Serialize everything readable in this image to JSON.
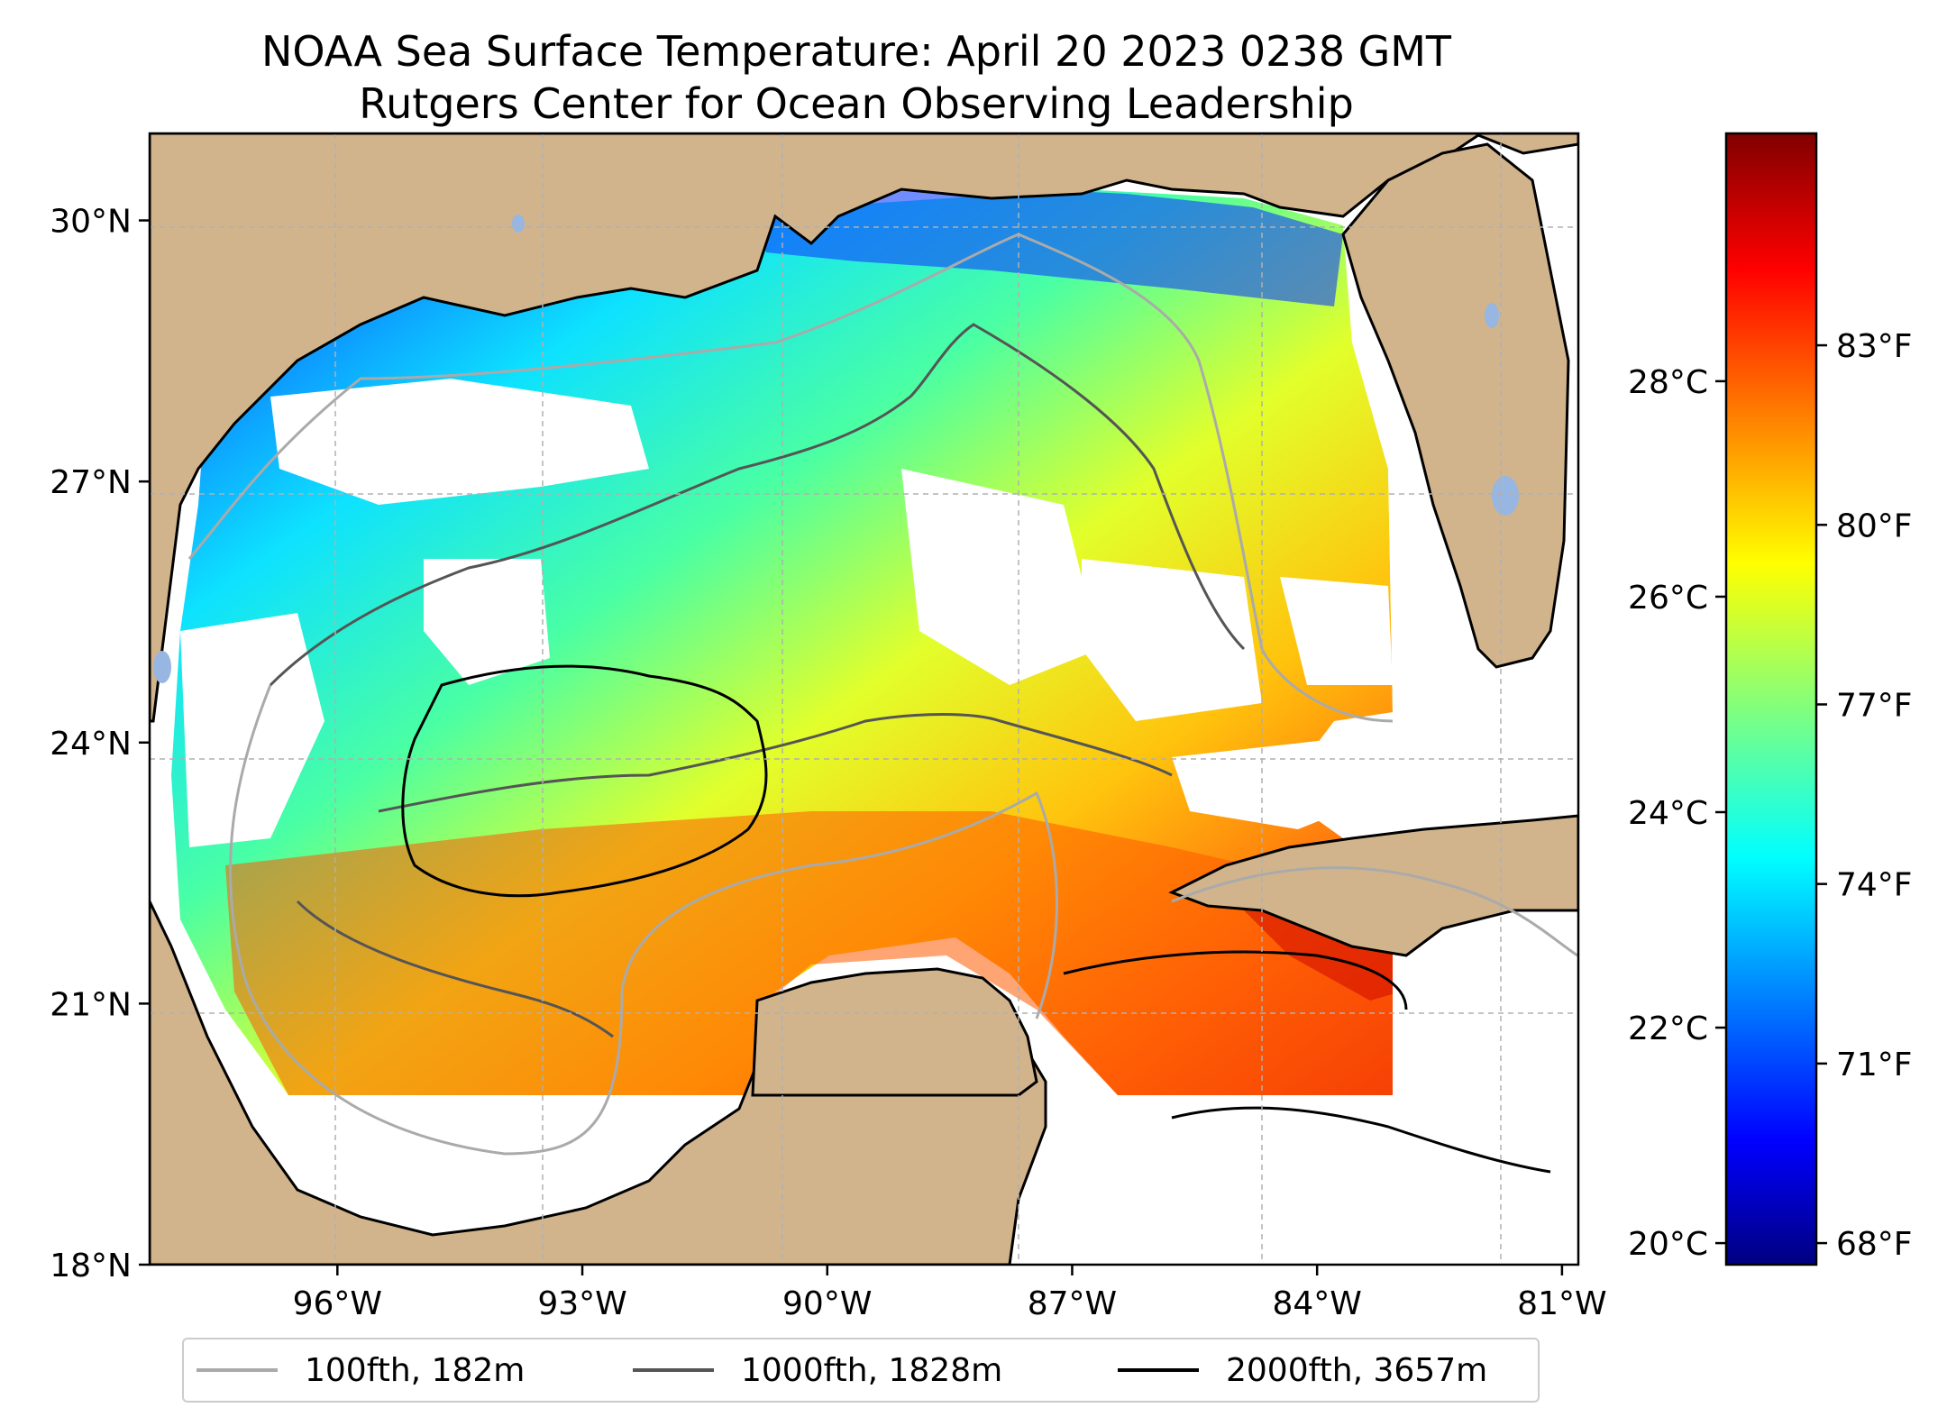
{
  "title": {
    "line1": "NOAA Sea Surface Temperature: April 20 2023 0238 GMT",
    "line2": "Rutgers Center for Ocean Observing Leadership"
  },
  "map": {
    "lat_range": [
      18,
      31
    ],
    "lon_range": [
      -98.3,
      -80.8
    ],
    "lat_ticks": [
      {
        "value": 18,
        "label": "18°N"
      },
      {
        "value": 21,
        "label": "21°N"
      },
      {
        "value": 24,
        "label": "24°N"
      },
      {
        "value": 27,
        "label": "27°N"
      },
      {
        "value": 30,
        "label": "30°N"
      }
    ],
    "lon_ticks": [
      {
        "value": -96,
        "label": "96°W"
      },
      {
        "value": -93,
        "label": "93°W"
      },
      {
        "value": -90,
        "label": "90°W"
      },
      {
        "value": -87,
        "label": "87°W"
      },
      {
        "value": -84,
        "label": "84°W"
      },
      {
        "value": -81,
        "label": "81°W"
      }
    ],
    "land_color": "#d2b48c",
    "lake_color": "#97b6e1",
    "grid": true
  },
  "colorbar": {
    "colormap": "jet",
    "celsius_range": [
      19.8,
      30.3
    ],
    "celsius_ticks": [
      {
        "value": 20,
        "label": "20°C"
      },
      {
        "value": 22,
        "label": "22°C"
      },
      {
        "value": 24,
        "label": "24°C"
      },
      {
        "value": 26,
        "label": "26°C"
      },
      {
        "value": 28,
        "label": "28°C"
      }
    ],
    "fahrenheit_ticks": [
      {
        "value": 68,
        "label": "68°F"
      },
      {
        "value": 71,
        "label": "71°F"
      },
      {
        "value": 74,
        "label": "74°F"
      },
      {
        "value": 77,
        "label": "77°F"
      },
      {
        "value": 80,
        "label": "80°F"
      },
      {
        "value": 83,
        "label": "83°F"
      }
    ]
  },
  "legend": [
    {
      "label": "100fth, 182m",
      "color": "#aaaaaa"
    },
    {
      "label": "1000fth, 1828m",
      "color": "#555555"
    },
    {
      "label": "2000fth, 3657m",
      "color": "#000000"
    }
  ]
}
